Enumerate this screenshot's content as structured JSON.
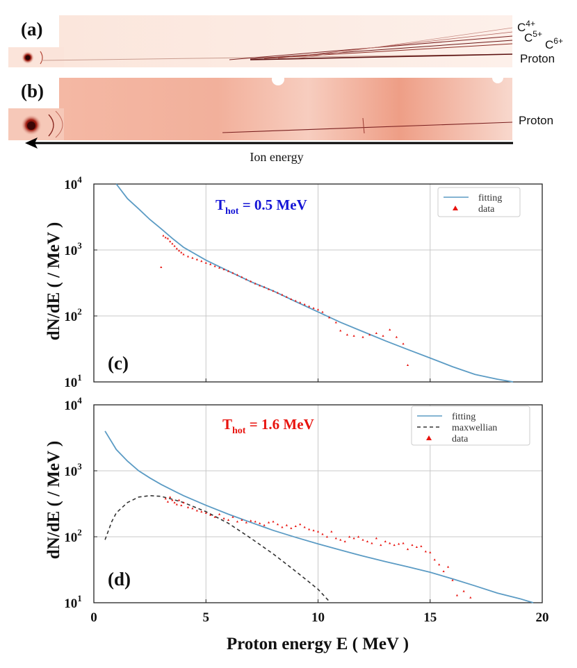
{
  "images": {
    "a": {
      "label": "(a)",
      "ion_labels": [
        "C4+",
        "C5+",
        "C6+"
      ],
      "proton_label": "Proton"
    },
    "b": {
      "label": "(b)",
      "proton_label": "Proton"
    },
    "arrow_label": "Ion energy",
    "colors": {
      "film": "#f3c4b4",
      "film_dark": "#b22a1a"
    }
  },
  "chart_data": [
    {
      "type": "scatter",
      "panel_label": "(c)",
      "annotation": {
        "text": "T",
        "subscript": "hot",
        "suffix": " = 0.5 MeV",
        "color": "#1515d6"
      },
      "ylabel": "dN/dE ( / MeV )",
      "xlabel": "",
      "xlim": [
        0,
        20
      ],
      "ylim": [
        10,
        10000
      ],
      "yscale": "log",
      "x_ticks": [
        0,
        5,
        10,
        15,
        20
      ],
      "y_tick_labels": [
        {
          "base": "10",
          "exp": "1"
        },
        {
          "base": "10",
          "exp": "2"
        },
        {
          "base": "10",
          "exp": "3"
        },
        {
          "base": "10",
          "exp": "4"
        }
      ],
      "grid": true,
      "legend": {
        "placement": "top-right",
        "entries": [
          {
            "label": "fitting",
            "kind": "line"
          },
          {
            "label": "data",
            "kind": "marker"
          }
        ]
      },
      "series": [
        {
          "name": "fitting",
          "kind": "line",
          "color": "#5b9bc4",
          "x": [
            1.0,
            1.5,
            2.0,
            2.5,
            3.0,
            3.5,
            4.0,
            5.0,
            6.0,
            7.0,
            8.0,
            9.0,
            10.0,
            11.0,
            12.0,
            13.0,
            14.0,
            15.0,
            16.0,
            17.0,
            18.0,
            18.7
          ],
          "y": [
            10000,
            6000,
            4200,
            2900,
            2100,
            1500,
            1100,
            700,
            480,
            330,
            240,
            165,
            115,
            80,
            58,
            42,
            31,
            23,
            17,
            13,
            11,
            10
          ]
        },
        {
          "name": "data",
          "kind": "marker",
          "color": "#e8140f",
          "x": [
            3.0,
            3.1,
            3.2,
            3.3,
            3.4,
            3.5,
            3.6,
            3.7,
            3.8,
            3.9,
            4.0,
            4.2,
            4.4,
            4.6,
            4.8,
            5.0,
            5.2,
            5.4,
            5.6,
            5.8,
            6.0,
            6.2,
            6.4,
            6.6,
            6.8,
            7.0,
            7.2,
            7.4,
            7.6,
            7.8,
            8.0,
            8.2,
            8.4,
            8.6,
            8.8,
            9.0,
            9.2,
            9.4,
            9.6,
            9.8,
            10.0,
            10.2,
            10.5,
            10.8,
            11.0,
            11.3,
            11.6,
            12.0,
            12.3,
            12.6,
            12.9,
            13.2,
            13.5,
            13.8,
            14.0
          ],
          "y": [
            550,
            1650,
            1550,
            1500,
            1350,
            1250,
            1150,
            1050,
            980,
            920,
            860,
            800,
            760,
            720,
            680,
            640,
            610,
            570,
            540,
            510,
            480,
            450,
            420,
            390,
            360,
            335,
            310,
            290,
            275,
            255,
            240,
            225,
            210,
            195,
            180,
            170,
            160,
            150,
            140,
            132,
            125,
            115,
            95,
            80,
            60,
            52,
            50,
            48,
            52,
            55,
            50,
            62,
            48,
            38,
            18
          ]
        }
      ]
    },
    {
      "type": "scatter",
      "panel_label": "(d)",
      "annotation": {
        "text": "T",
        "subscript": "hot",
        "suffix": " = 1.6 MeV",
        "color": "#e8140f"
      },
      "ylabel": "dN/dE ( / MeV )",
      "xlabel": "Proton energy E ( MeV )",
      "xlim": [
        0,
        20
      ],
      "ylim": [
        10,
        10000
      ],
      "yscale": "log",
      "x_ticks": [
        0,
        5,
        10,
        15,
        20
      ],
      "x_tick_labels": [
        "0",
        "5",
        "10",
        "15",
        "20"
      ],
      "y_tick_labels": [
        {
          "base": "10",
          "exp": "1"
        },
        {
          "base": "10",
          "exp": "2"
        },
        {
          "base": "10",
          "exp": "3"
        },
        {
          "base": "10",
          "exp": "4"
        }
      ],
      "grid": true,
      "legend": {
        "placement": "top-right",
        "entries": [
          {
            "label": "fitting",
            "kind": "line"
          },
          {
            "label": "maxwellian",
            "kind": "dashed"
          },
          {
            "label": "data",
            "kind": "marker"
          }
        ]
      },
      "series": [
        {
          "name": "fitting",
          "kind": "line",
          "color": "#5b9bc4",
          "x": [
            0.5,
            1.0,
            1.5,
            2.0,
            2.5,
            3.0,
            3.5,
            4.0,
            5.0,
            6.0,
            7.0,
            8.0,
            9.0,
            10.0,
            11.0,
            12.0,
            13.0,
            14.0,
            15.0,
            16.0,
            17.0,
            18.0,
            19.0,
            19.6
          ],
          "y": [
            4000,
            2100,
            1400,
            1000,
            780,
            620,
            510,
            420,
            300,
            220,
            165,
            125,
            98,
            78,
            63,
            51,
            42,
            35,
            29,
            23,
            18,
            14,
            11.5,
            10
          ]
        },
        {
          "name": "maxwellian",
          "kind": "dashed",
          "color": "#333333",
          "x": [
            0.5,
            0.8,
            1.0,
            1.5,
            2.0,
            2.5,
            3.0,
            3.5,
            4.0,
            5.0,
            6.0,
            7.0,
            8.0,
            9.0,
            10.0,
            10.5
          ],
          "y": [
            90,
            170,
            230,
            330,
            400,
            420,
            410,
            370,
            330,
            240,
            160,
            95,
            55,
            30,
            16,
            10.5
          ]
        },
        {
          "name": "data",
          "kind": "marker",
          "color": "#e8140f",
          "x": [
            3.2,
            3.3,
            3.4,
            3.5,
            3.6,
            3.7,
            3.8,
            3.9,
            4.0,
            4.2,
            4.4,
            4.6,
            4.8,
            5.0,
            5.2,
            5.4,
            5.6,
            5.8,
            6.0,
            6.2,
            6.4,
            6.6,
            6.8,
            7.0,
            7.2,
            7.4,
            7.6,
            7.8,
            8.0,
            8.2,
            8.4,
            8.6,
            8.8,
            9.0,
            9.2,
            9.4,
            9.6,
            9.8,
            10.0,
            10.2,
            10.4,
            10.6,
            10.8,
            11.0,
            11.2,
            11.4,
            11.6,
            11.8,
            12.0,
            12.2,
            12.4,
            12.6,
            12.8,
            13.0,
            13.2,
            13.4,
            13.6,
            13.8,
            14.0,
            14.2,
            14.4,
            14.6,
            14.8,
            15.0,
            15.2,
            15.4,
            15.6,
            15.8,
            16.0,
            16.2,
            16.5,
            16.8
          ],
          "y": [
            380,
            340,
            400,
            360,
            330,
            310,
            360,
            300,
            330,
            280,
            270,
            250,
            240,
            230,
            215,
            200,
            220,
            190,
            180,
            200,
            170,
            180,
            165,
            175,
            170,
            160,
            150,
            165,
            170,
            155,
            140,
            150,
            135,
            145,
            155,
            140,
            130,
            125,
            120,
            110,
            100,
            120,
            95,
            90,
            85,
            100,
            95,
            100,
            90,
            85,
            80,
            95,
            75,
            85,
            80,
            75,
            78,
            80,
            65,
            75,
            70,
            72,
            60,
            58,
            45,
            38,
            30,
            35,
            22,
            13,
            15,
            12
          ]
        }
      ]
    }
  ]
}
